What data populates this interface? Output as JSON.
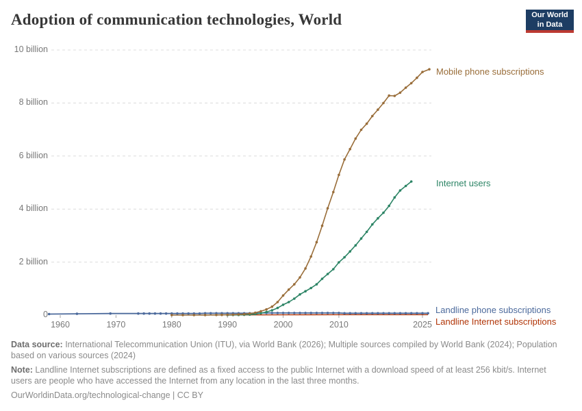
{
  "header": {
    "title": "Adoption of communication technologies, World",
    "logo": {
      "line1": "Our World",
      "line2": "in Data",
      "bg_color": "#1d3d63",
      "accent_color": "#bc3a32"
    }
  },
  "chart_data": {
    "type": "line",
    "title": "Adoption of communication technologies, World",
    "xlabel": "",
    "ylabel": "",
    "unit": "billion",
    "xlim": [
      1958,
      2026.5
    ],
    "ylim": [
      0,
      10
    ],
    "grid": "dashed horizontal",
    "legend_position": "right-of-line-labels",
    "yAxis": {
      "ticks": [
        {
          "value": 10,
          "label": "10 billion"
        },
        {
          "value": 8,
          "label": "8 billion"
        },
        {
          "value": 6,
          "label": "6 billion"
        },
        {
          "value": 4,
          "label": "4 billion"
        },
        {
          "value": 2,
          "label": "2 billion"
        },
        {
          "value": 0,
          "label": "0"
        }
      ]
    },
    "xAxis": {
      "ticks": [
        1960,
        1970,
        1980,
        1990,
        2000,
        2010,
        2025
      ]
    },
    "series": [
      {
        "name": "Mobile phone subscriptions",
        "color": "#996d39",
        "markers": true,
        "stroke_width": 1.6,
        "points": [
          [
            1980,
            0.0
          ],
          [
            1982,
            0.0
          ],
          [
            1984,
            0.001
          ],
          [
            1986,
            0.002
          ],
          [
            1988,
            0.004
          ],
          [
            1989,
            0.007
          ],
          [
            1990,
            0.011
          ],
          [
            1991,
            0.016
          ],
          [
            1992,
            0.023
          ],
          [
            1993,
            0.034
          ],
          [
            1994,
            0.056
          ],
          [
            1995,
            0.091
          ],
          [
            1996,
            0.145
          ],
          [
            1997,
            0.215
          ],
          [
            1998,
            0.318
          ],
          [
            1999,
            0.49
          ],
          [
            2000,
            0.74
          ],
          [
            2001,
            0.96
          ],
          [
            2002,
            1.16
          ],
          [
            2003,
            1.42
          ],
          [
            2004,
            1.76
          ],
          [
            2005,
            2.21
          ],
          [
            2006,
            2.75
          ],
          [
            2007,
            3.37
          ],
          [
            2008,
            4.03
          ],
          [
            2009,
            4.64
          ],
          [
            2010,
            5.29
          ],
          [
            2011,
            5.87
          ],
          [
            2012,
            6.26
          ],
          [
            2013,
            6.66
          ],
          [
            2014,
            6.99
          ],
          [
            2015,
            7.22
          ],
          [
            2016,
            7.51
          ],
          [
            2017,
            7.75
          ],
          [
            2018,
            8.0
          ],
          [
            2019,
            8.28
          ],
          [
            2020,
            8.27
          ],
          [
            2021,
            8.39
          ],
          [
            2022,
            8.58
          ],
          [
            2023,
            8.75
          ],
          [
            2024,
            8.95
          ],
          [
            2025,
            9.17
          ]
        ]
      },
      {
        "name": "Internet users",
        "color": "#2c8465",
        "markers": true,
        "stroke_width": 1.6,
        "points": [
          [
            1990,
            0.003
          ],
          [
            1991,
            0.004
          ],
          [
            1992,
            0.007
          ],
          [
            1993,
            0.01
          ],
          [
            1994,
            0.021
          ],
          [
            1995,
            0.039
          ],
          [
            1996,
            0.073
          ],
          [
            1997,
            0.116
          ],
          [
            1998,
            0.18
          ],
          [
            1999,
            0.27
          ],
          [
            2000,
            0.39
          ],
          [
            2001,
            0.49
          ],
          [
            2002,
            0.62
          ],
          [
            2003,
            0.78
          ],
          [
            2004,
            0.9
          ],
          [
            2005,
            1.02
          ],
          [
            2006,
            1.16
          ],
          [
            2007,
            1.37
          ],
          [
            2008,
            1.55
          ],
          [
            2009,
            1.73
          ],
          [
            2010,
            1.99
          ],
          [
            2011,
            2.18
          ],
          [
            2012,
            2.4
          ],
          [
            2013,
            2.63
          ],
          [
            2014,
            2.89
          ],
          [
            2015,
            3.14
          ],
          [
            2016,
            3.42
          ],
          [
            2017,
            3.65
          ],
          [
            2018,
            3.86
          ],
          [
            2019,
            4.12
          ],
          [
            2020,
            4.44
          ],
          [
            2021,
            4.7
          ],
          [
            2022,
            4.87
          ],
          [
            2023,
            5.04
          ]
        ]
      },
      {
        "name": "Landline phone subscriptions",
        "color": "#4c6a9c",
        "markers": true,
        "stroke_width": 1.8,
        "points": [
          [
            1958,
            0.04
          ],
          [
            1963,
            0.05
          ],
          [
            1969,
            0.06
          ],
          [
            1974,
            0.06
          ],
          [
            1975,
            0.06
          ],
          [
            1976,
            0.06
          ],
          [
            1977,
            0.06
          ],
          [
            1978,
            0.06
          ],
          [
            1979,
            0.06
          ],
          [
            1980,
            0.06
          ],
          [
            1981,
            0.06
          ],
          [
            1982,
            0.06
          ],
          [
            1983,
            0.06
          ],
          [
            1984,
            0.06
          ],
          [
            1985,
            0.06
          ],
          [
            1986,
            0.07
          ],
          [
            1987,
            0.07
          ],
          [
            1988,
            0.07
          ],
          [
            1989,
            0.07
          ],
          [
            1990,
            0.07
          ],
          [
            1991,
            0.07
          ],
          [
            1992,
            0.07
          ],
          [
            1993,
            0.07
          ],
          [
            1994,
            0.07
          ],
          [
            1995,
            0.07
          ],
          [
            1996,
            0.08
          ],
          [
            1997,
            0.08
          ],
          [
            1998,
            0.08
          ],
          [
            1999,
            0.08
          ],
          [
            2000,
            0.08
          ],
          [
            2001,
            0.08
          ],
          [
            2002,
            0.08
          ],
          [
            2003,
            0.08
          ],
          [
            2004,
            0.08
          ],
          [
            2005,
            0.08
          ],
          [
            2006,
            0.08
          ],
          [
            2007,
            0.08
          ],
          [
            2008,
            0.08
          ],
          [
            2009,
            0.08
          ],
          [
            2010,
            0.08
          ],
          [
            2011,
            0.07
          ],
          [
            2012,
            0.07
          ],
          [
            2013,
            0.07
          ],
          [
            2014,
            0.07
          ],
          [
            2015,
            0.07
          ],
          [
            2016,
            0.07
          ],
          [
            2017,
            0.07
          ],
          [
            2018,
            0.07
          ],
          [
            2019,
            0.07
          ],
          [
            2020,
            0.07
          ],
          [
            2021,
            0.07
          ],
          [
            2022,
            0.07
          ],
          [
            2023,
            0.07
          ],
          [
            2024,
            0.07
          ],
          [
            2025,
            0.07
          ],
          [
            2026,
            0.07
          ]
        ]
      },
      {
        "name": "Landline Internet subscriptions",
        "color": "#b13507",
        "markers": false,
        "stroke_width": 1.4,
        "points": [
          [
            1990,
            0.005
          ],
          [
            1995,
            0.008
          ],
          [
            2000,
            0.01
          ],
          [
            2005,
            0.012
          ],
          [
            2010,
            0.015
          ],
          [
            2015,
            0.015
          ],
          [
            2020,
            0.015
          ],
          [
            2026,
            0.015
          ]
        ]
      }
    ]
  },
  "footer": {
    "data_source_label": "Data source:",
    "data_source_text": " International Telecommunication Union (ITU), via World Bank (2026); Multiple sources compiled by World Bank (2024); Population based on various sources (2024)",
    "note_label": "Note:",
    "note_text": " Landline Internet subscriptions are defined as a fixed access to the public Internet with a download speed of at least 256 kbit/s. Internet users are people who have accessed the Internet from any location in the last three months.",
    "link_line": "OurWorldinData.org/technological-change | CC BY"
  }
}
